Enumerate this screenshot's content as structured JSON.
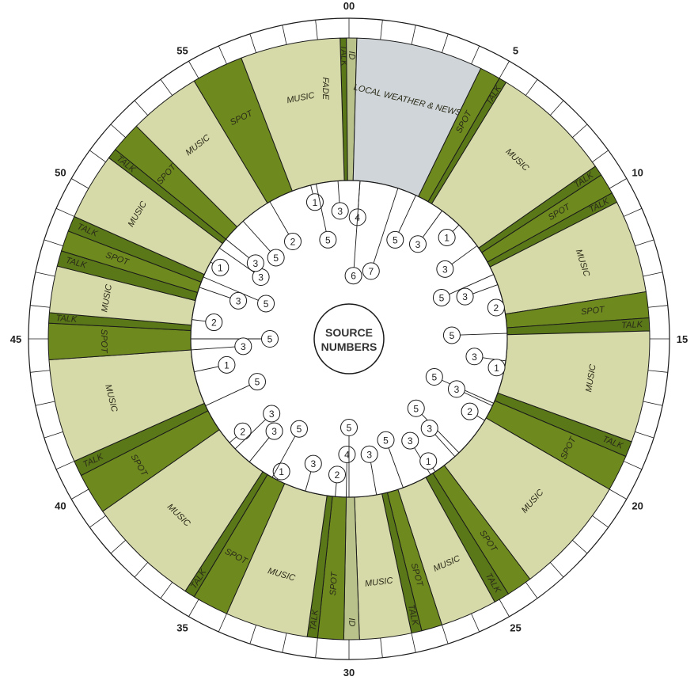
{
  "hub": {
    "line1": "SOURCE",
    "line2": "NUMBERS"
  },
  "minute_labels": [
    "00",
    "5",
    "10",
    "15",
    "20",
    "25",
    "30",
    "35",
    "40",
    "45",
    "50",
    "55"
  ],
  "colors": {
    "music": "#d6d9a8",
    "spot": "#6e8a1f",
    "talk": "#5a7818",
    "id": "#b8c28a",
    "news": "#cfd5d8",
    "ring": "#ffffff",
    "line": "#1a1a1a"
  },
  "segments": [
    {
      "type": "talk",
      "start": 358.3,
      "end": 359.5,
      "label": "TALK"
    },
    {
      "type": "id",
      "start": 359.5,
      "end": 1.5,
      "label": "ID"
    },
    {
      "type": "news",
      "start": 1.5,
      "end": 26,
      "label": "LOCAL WEATHER & NEWS"
    },
    {
      "type": "spot",
      "start": 26,
      "end": 30,
      "label": "SPOT"
    },
    {
      "type": "talk",
      "start": 30,
      "end": 31.5,
      "label": "TALK"
    },
    {
      "type": "music",
      "start": 31.5,
      "end": 55,
      "label": "MUSIC"
    },
    {
      "type": "talk",
      "start": 55,
      "end": 57,
      "label": "TALK"
    },
    {
      "type": "spot",
      "start": 57,
      "end": 61,
      "label": "SPOT"
    },
    {
      "type": "talk",
      "start": 61,
      "end": 63,
      "label": "TALK"
    },
    {
      "type": "music",
      "start": 63,
      "end": 81,
      "label": "MUSIC"
    },
    {
      "type": "spot",
      "start": 81,
      "end": 86,
      "label": "SPOT"
    },
    {
      "type": "talk",
      "start": 86,
      "end": 88.5,
      "label": "TALK"
    },
    {
      "type": "music",
      "start": 88.5,
      "end": 110,
      "label": "MUSIC"
    },
    {
      "type": "talk",
      "start": 110,
      "end": 113,
      "label": "TALK"
    },
    {
      "type": "spot",
      "start": 113,
      "end": 120,
      "label": "SPOT"
    },
    {
      "type": "music",
      "start": 120,
      "end": 143,
      "label": "MUSIC"
    },
    {
      "type": "spot",
      "start": 143,
      "end": 148,
      "label": "SPOT"
    },
    {
      "type": "talk",
      "start": 148,
      "end": 151,
      "label": "TALK"
    },
    {
      "type": "music",
      "start": 151,
      "end": 162,
      "label": "MUSIC"
    },
    {
      "type": "spot",
      "start": 162,
      "end": 166,
      "label": "SPOT"
    },
    {
      "type": "talk",
      "start": 166,
      "end": 168,
      "label": "TALK"
    },
    {
      "type": "music",
      "start": 168,
      "end": 178,
      "label": "MUSIC"
    },
    {
      "type": "id",
      "start": 178,
      "end": 181,
      "label": "ID"
    },
    {
      "type": "spot",
      "start": 181,
      "end": 186,
      "label": "SPOT"
    },
    {
      "type": "talk",
      "start": 186,
      "end": 188,
      "label": "TALK"
    },
    {
      "type": "music",
      "start": 188,
      "end": 204,
      "label": "MUSIC"
    },
    {
      "type": "spot",
      "start": 204,
      "end": 211,
      "label": "SPOT"
    },
    {
      "type": "talk",
      "start": 211,
      "end": 213,
      "label": "TALK"
    },
    {
      "type": "music",
      "start": 213,
      "end": 235,
      "label": "MUSIC"
    },
    {
      "type": "spot",
      "start": 235,
      "end": 243,
      "label": "SPOT"
    },
    {
      "type": "talk",
      "start": 243,
      "end": 246,
      "label": "TALK"
    },
    {
      "type": "music",
      "start": 246,
      "end": 266,
      "label": "MUSIC"
    },
    {
      "type": "spot",
      "start": 266,
      "end": 273,
      "label": "SPOT"
    },
    {
      "type": "talk",
      "start": 273,
      "end": 275,
      "label": "TALK"
    },
    {
      "type": "music",
      "start": 275,
      "end": 284,
      "label": "MUSIC"
    },
    {
      "type": "talk",
      "start": 284,
      "end": 287,
      "label": "TALK"
    },
    {
      "type": "spot",
      "start": 287,
      "end": 291,
      "label": "SPOT"
    },
    {
      "type": "talk",
      "start": 291,
      "end": 294,
      "label": "TALK"
    },
    {
      "type": "music",
      "start": 294,
      "end": 307,
      "label": "MUSIC"
    },
    {
      "type": "talk",
      "start": 307,
      "end": 309,
      "label": "TALK"
    },
    {
      "type": "spot",
      "start": 309,
      "end": 315,
      "label": "SPOT"
    },
    {
      "type": "music",
      "start": 315,
      "end": 329,
      "label": "MUSIC"
    },
    {
      "type": "spot",
      "start": 329,
      "end": 339,
      "label": "SPOT"
    },
    {
      "type": "music",
      "start": 339,
      "end": 358.3,
      "label": "MUSIC"
    }
  ],
  "fade_label": "FADE",
  "source_numbers": [
    {
      "n": "1",
      "a": 346,
      "r": 178
    },
    {
      "n": "3",
      "a": 356,
      "r": 162
    },
    {
      "n": "4",
      "a": 4,
      "r": 154
    },
    {
      "n": "5",
      "a": 25,
      "r": 138
    },
    {
      "n": "7",
      "a": 18,
      "r": 90
    },
    {
      "n": "6",
      "a": 4,
      "r": 80
    },
    {
      "n": "3",
      "a": 36,
      "r": 148
    },
    {
      "n": "1",
      "a": 44,
      "r": 178
    },
    {
      "n": "3",
      "a": 54,
      "r": 150
    },
    {
      "n": "5",
      "a": 66,
      "r": 128
    },
    {
      "n": "3",
      "a": 70,
      "r": 156
    },
    {
      "n": "2",
      "a": 78,
      "r": 190
    },
    {
      "n": "5",
      "a": 88,
      "r": 130
    },
    {
      "n": "3",
      "a": 98,
      "r": 160
    },
    {
      "n": "1",
      "a": 101,
      "r": 190
    },
    {
      "n": "5",
      "a": 114,
      "r": 118
    },
    {
      "n": "3",
      "a": 115,
      "r": 150
    },
    {
      "n": "2",
      "a": 121,
      "r": 178
    },
    {
      "n": "5",
      "a": 136,
      "r": 122
    },
    {
      "n": "3",
      "a": 138,
      "r": 152
    },
    {
      "n": "3",
      "a": 149,
      "r": 150
    },
    {
      "n": "1",
      "a": 147,
      "r": 184
    },
    {
      "n": "5",
      "a": 160,
      "r": 136
    },
    {
      "n": "3",
      "a": 170,
      "r": 148
    },
    {
      "n": "4",
      "a": 181,
      "r": 146
    },
    {
      "n": "2",
      "a": 185,
      "r": 172
    },
    {
      "n": "5",
      "a": 180,
      "r": 112
    },
    {
      "n": "3",
      "a": 196,
      "r": 164
    },
    {
      "n": "1",
      "a": 207,
      "r": 188
    },
    {
      "n": "5",
      "a": 209,
      "r": 130
    },
    {
      "n": "3",
      "a": 219,
      "r": 150
    },
    {
      "n": "2",
      "a": 229,
      "r": 178
    },
    {
      "n": "3",
      "a": 226,
      "r": 136
    },
    {
      "n": "5",
      "a": 245,
      "r": 128
    },
    {
      "n": "1",
      "a": 258,
      "r": 158
    },
    {
      "n": "5",
      "a": 270,
      "r": 100
    },
    {
      "n": "3",
      "a": 266,
      "r": 134
    },
    {
      "n": "2",
      "a": 277,
      "r": 172
    },
    {
      "n": "3",
      "a": 289,
      "r": 148
    },
    {
      "n": "5",
      "a": 293,
      "r": 114
    },
    {
      "n": "3",
      "a": 305,
      "r": 136
    },
    {
      "n": "1",
      "a": 299,
      "r": 186
    },
    {
      "n": "3",
      "a": 309,
      "r": 152
    },
    {
      "n": "5",
      "a": 318,
      "r": 138
    },
    {
      "n": "2",
      "a": 330,
      "r": 142
    },
    {
      "n": "5",
      "a": 348,
      "r": 128
    }
  ]
}
